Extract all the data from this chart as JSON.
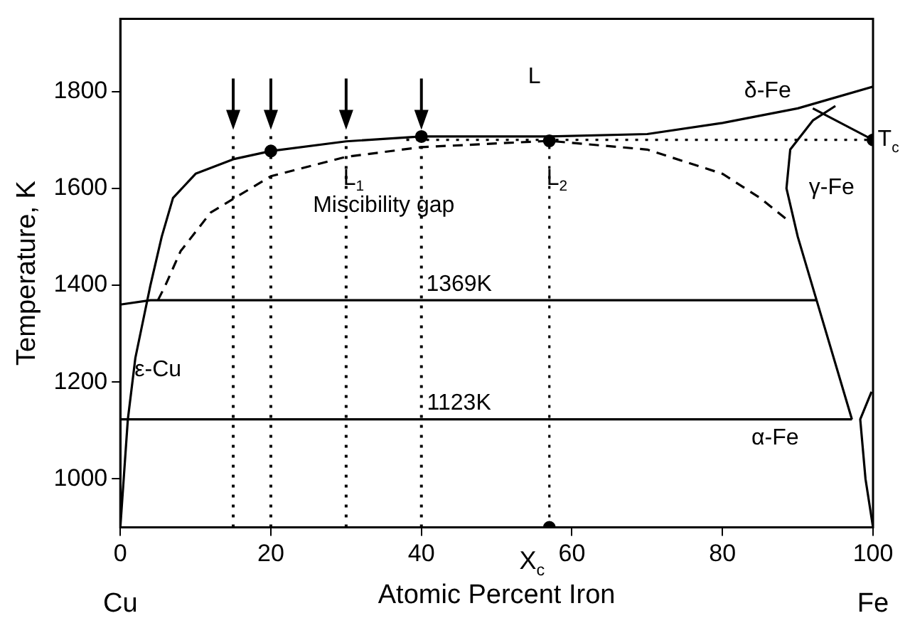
{
  "chart_data": {
    "type": "line",
    "xlabel": "Atomic Percent Iron",
    "ylabel": "Temperature, K",
    "xlim": [
      0,
      100
    ],
    "ylim": [
      900,
      1950
    ],
    "xticks": [
      0,
      20,
      40,
      60,
      80,
      100
    ],
    "yticks": [
      1000,
      1200,
      1400,
      1600,
      1800
    ],
    "grid": false,
    "legend": false,
    "marker": "none",
    "series": [
      {
        "color": "#000000",
        "line_style": "solid",
        "x": [
          0,
          1,
          2,
          4,
          5.5,
          7,
          10,
          15,
          20,
          30,
          40,
          57,
          70,
          80,
          90,
          100
        ],
        "values": [
          900,
          1123,
          1250,
          1400,
          1500,
          1580,
          1630,
          1660,
          1677,
          1697,
          1707,
          1707,
          1712,
          1735,
          1765,
          1810
        ]
      },
      {
        "color": "#000000",
        "line_style": "dashed",
        "x": [
          5,
          6,
          8,
          12,
          20,
          30,
          40,
          57,
          70,
          80,
          85,
          89
        ],
        "values": [
          1369,
          1400,
          1470,
          1550,
          1625,
          1665,
          1685,
          1698,
          1680,
          1630,
          1580,
          1530
        ]
      },
      {
        "color": "#000000",
        "line_style": "solid",
        "x": [
          97.2,
          92.5,
          90,
          88.5,
          89,
          92,
          95
        ],
        "values": [
          1123,
          1369,
          1500,
          1600,
          1680,
          1740,
          1770
        ]
      },
      {
        "color": "#000000",
        "line_style": "solid",
        "x": [
          92,
          100
        ],
        "values": [
          1765,
          1700
        ]
      },
      {
        "color": "#000000",
        "line_style": "solid",
        "x": [
          100,
          99,
          98.3,
          99.8
        ],
        "values": [
          900,
          1000,
          1123,
          1180
        ]
      },
      {
        "color": "#000000",
        "line_style": "solid",
        "x": [
          0,
          4,
          92.5
        ],
        "values": [
          1360,
          1369,
          1369
        ]
      },
      {
        "color": "#000000",
        "line_style": "solid",
        "x": [
          0,
          97.2
        ],
        "values": [
          1123,
          1123
        ]
      },
      {
        "color": "#000000",
        "line_style": "dotted",
        "x": [
          38,
          100
        ],
        "values": [
          1700,
          1700
        ]
      },
      {
        "color": "#000000",
        "line_style": "dotted",
        "x": [
          57,
          57
        ],
        "values": [
          900,
          1698
        ]
      },
      {
        "type": "scatter",
        "color": "#000000",
        "marker": "circle",
        "x": [
          20,
          40,
          57,
          100,
          57
        ],
        "values": [
          1677,
          1707,
          1698,
          1700,
          900
        ]
      }
    ],
    "ref_lines": [
      {
        "axis": "x",
        "value": 15,
        "line_style": "dotted"
      },
      {
        "axis": "x",
        "value": 20,
        "line_style": "dotted"
      },
      {
        "axis": "x",
        "value": 30,
        "line_style": "dotted"
      },
      {
        "axis": "x",
        "value": 40,
        "line_style": "dotted"
      }
    ],
    "annotations": [
      "L",
      "L$_{1}$",
      "L$_{2}$",
      "Miscibility gap",
      "1369K",
      "1123K",
      "ε-Cu",
      "γ-Fe",
      "δ-Fe",
      "α-Fe",
      {
        "text": "T$_{c}$",
        "x": 101,
        "y": 1700
      },
      {
        "text": "X$_{c}$",
        "x": 56,
        "y": 900
      },
      {
        "text": "Cu",
        "x": 0,
        "y": 900
      },
      {
        "text": "Fe",
        "x": 100,
        "y": 900
      }
    ]
  }
}
